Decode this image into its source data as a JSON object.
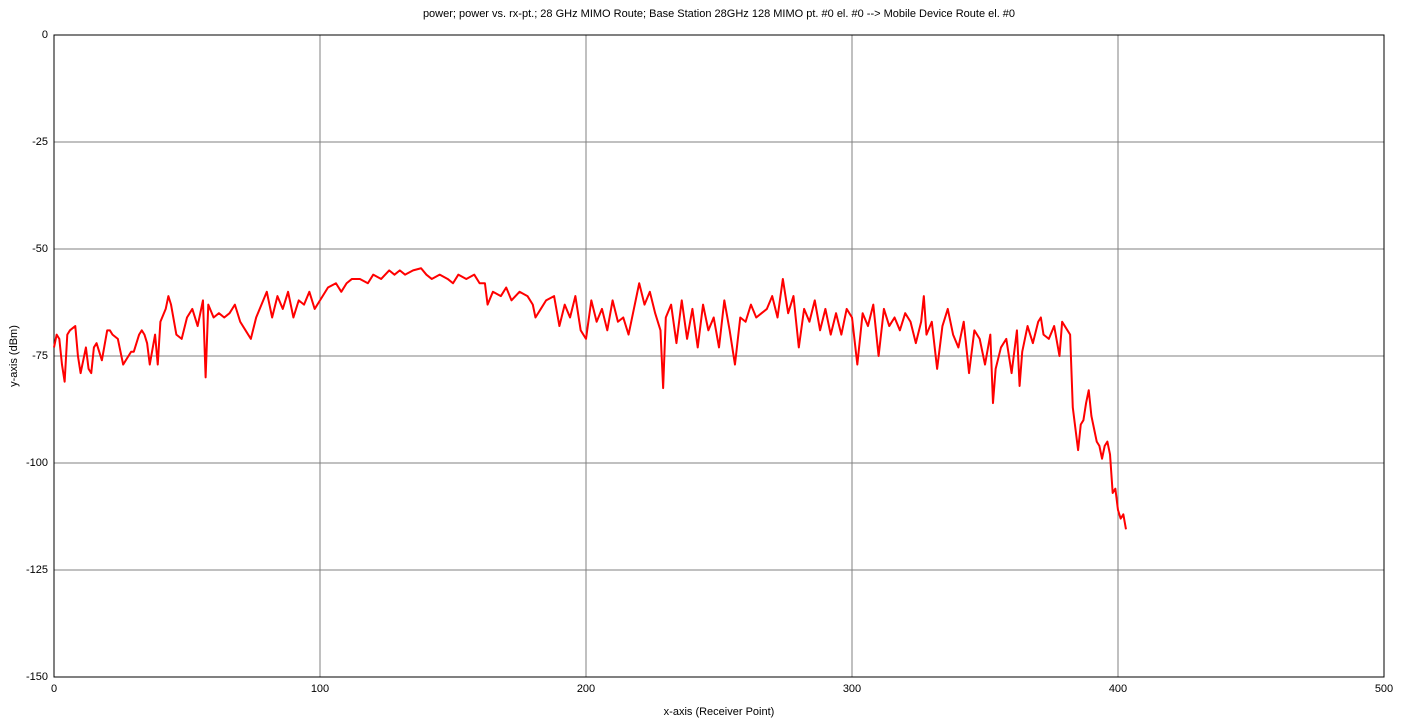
{
  "chart_data": {
    "type": "line",
    "title": "power; power vs. rx-pt.; 28 GHz MIMO Route; Base Station 28GHz 128 MIMO pt. #0 el. #0 --> Mobile Device Route el. #0",
    "xlabel": "x-axis (Receiver Point)",
    "ylabel": "y-axis (dBm)",
    "color": "#ff0000",
    "grid": true,
    "xlim": [
      0,
      500
    ],
    "xticks": [
      0,
      100,
      200,
      300,
      400,
      500
    ],
    "ylim": [
      -150,
      0
    ],
    "yticks": [
      -150,
      -125,
      -100,
      -75,
      -50,
      -25,
      0
    ],
    "x": [
      0,
      1,
      2,
      3,
      4,
      5,
      6,
      8,
      9,
      10,
      11,
      12,
      13,
      14,
      15,
      16,
      18,
      20,
      21,
      22,
      24,
      26,
      28,
      29,
      30,
      32,
      33,
      34,
      35,
      36,
      38,
      39,
      40,
      42,
      43,
      44,
      46,
      48,
      50,
      52,
      53,
      54,
      56,
      57,
      58,
      60,
      62,
      64,
      66,
      68,
      70,
      72,
      74,
      76,
      78,
      80,
      82,
      84,
      86,
      88,
      90,
      92,
      94,
      96,
      98,
      100,
      103,
      106,
      108,
      110,
      112,
      115,
      118,
      120,
      123,
      126,
      128,
      130,
      132,
      135,
      138,
      140,
      142,
      145,
      148,
      150,
      152,
      155,
      158,
      160,
      162,
      163,
      165,
      168,
      170,
      172,
      175,
      178,
      180,
      181,
      183,
      185,
      188,
      190,
      192,
      194,
      196,
      198,
      200,
      202,
      204,
      206,
      208,
      210,
      212,
      214,
      216,
      218,
      220,
      222,
      224,
      226,
      228,
      229,
      230,
      232,
      234,
      236,
      238,
      240,
      242,
      244,
      246,
      248,
      250,
      252,
      254,
      256,
      258,
      260,
      262,
      264,
      266,
      268,
      270,
      272,
      274,
      276,
      278,
      280,
      282,
      284,
      286,
      288,
      290,
      292,
      294,
      296,
      298,
      300,
      302,
      304,
      306,
      308,
      310,
      312,
      314,
      316,
      318,
      320,
      322,
      324,
      326,
      327,
      328,
      330,
      332,
      334,
      336,
      338,
      340,
      342,
      344,
      346,
      348,
      350,
      352,
      353,
      354,
      356,
      358,
      360,
      362,
      363,
      364,
      366,
      368,
      370,
      371,
      372,
      374,
      376,
      378,
      379,
      380,
      382,
      383,
      384,
      385,
      386,
      387,
      388,
      389,
      390,
      391,
      392,
      393,
      394,
      395,
      396,
      397,
      398,
      399,
      400,
      401,
      402,
      403
    ],
    "values": [
      -73,
      -70,
      -71,
      -77,
      -81,
      -70,
      -69,
      -68,
      -75,
      -79,
      -76,
      -73,
      -78,
      -79,
      -73,
      -72,
      -76,
      -69,
      -69,
      -70,
      -71,
      -77,
      -75,
      -74,
      -74,
      -70,
      -69,
      -70,
      -72,
      -77,
      -70,
      -77,
      -67,
      -64,
      -61,
      -63,
      -70,
      -71,
      -66,
      -64,
      -66,
      -68,
      -62,
      -80,
      -63,
      -66,
      -65,
      -66,
      -65,
      -63,
      -67,
      -69,
      -71,
      -66,
      -63,
      -60,
      -66,
      -61,
      -64,
      -60,
      -66,
      -62,
      -63,
      -60,
      -64,
      -62,
      -59,
      -58,
      -60,
      -58,
      -57,
      -57,
      -58,
      -56,
      -57,
      -55,
      -56,
      -55,
      -56,
      -55,
      -54.5,
      -56,
      -57,
      -56,
      -57,
      -58,
      -56,
      -57,
      -56,
      -58,
      -58,
      -63,
      -60,
      -61,
      -59,
      -62,
      -60,
      -61,
      -63,
      -66,
      -64,
      -62,
      -61,
      -68,
      -63,
      -66,
      -61,
      -69,
      -71,
      -62,
      -67,
      -64,
      -69,
      -62,
      -67,
      -66,
      -70,
      -64,
      -58,
      -63,
      -60,
      -65,
      -69,
      -82.5,
      -66,
      -63,
      -72,
      -62,
      -71,
      -64,
      -73,
      -63,
      -69,
      -66,
      -73,
      -62,
      -69,
      -77,
      -66,
      -67,
      -63,
      -66,
      -65,
      -64,
      -61,
      -66,
      -57,
      -65,
      -61,
      -73,
      -64,
      -67,
      -62,
      -69,
      -64,
      -70,
      -65,
      -70,
      -64,
      -66,
      -77,
      -65,
      -68,
      -63,
      -75,
      -64,
      -68,
      -66,
      -69,
      -65,
      -67,
      -72,
      -67,
      -61,
      -70,
      -67,
      -78,
      -68,
      -64,
      -70,
      -73,
      -67,
      -79,
      -69,
      -71,
      -77,
      -70,
      -86,
      -78,
      -73,
      -71,
      -79,
      -69,
      -82,
      -74,
      -68,
      -72,
      -67,
      -66,
      -70,
      -71,
      -68,
      -75,
      -67,
      -68,
      -70,
      -87,
      -92,
      -97,
      -91,
      -90,
      -86,
      -83,
      -89,
      -92,
      -95,
      -96,
      -99,
      -96,
      -95,
      -98,
      -107,
      -106,
      -111,
      -113,
      -112,
      -115.5
    ]
  }
}
